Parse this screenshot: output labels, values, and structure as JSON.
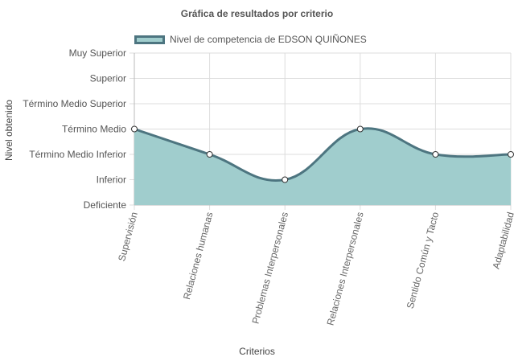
{
  "chart_data": {
    "type": "area",
    "title": "Gráfica de resultados por criterio",
    "xlabel": "Criterios",
    "ylabel": "Nivel obtenido",
    "categories": [
      "Supervisión",
      "Relaciones humanas",
      "Problemas Interpersonales",
      "Relaciones Interpersonales",
      "Sentido Común y Tacto",
      "Adaptabilidad"
    ],
    "y_levels": [
      "Deficiente",
      "Inferior",
      "Término Medio Inferior",
      "Término Medio",
      "Término Medio Superior",
      "Superior",
      "Muy Superior"
    ],
    "series": [
      {
        "name": "Nivel de competencia de EDSON QUIÑONES",
        "values": [
          3,
          2,
          1,
          3,
          2,
          2
        ]
      }
    ],
    "ylim": [
      0,
      6
    ],
    "grid": true,
    "legend_position": "top",
    "colors": {
      "fill": "#a0cdcd",
      "line": "#4d7580",
      "grid": "#dddddd",
      "point_fill": "#ffffff"
    }
  }
}
